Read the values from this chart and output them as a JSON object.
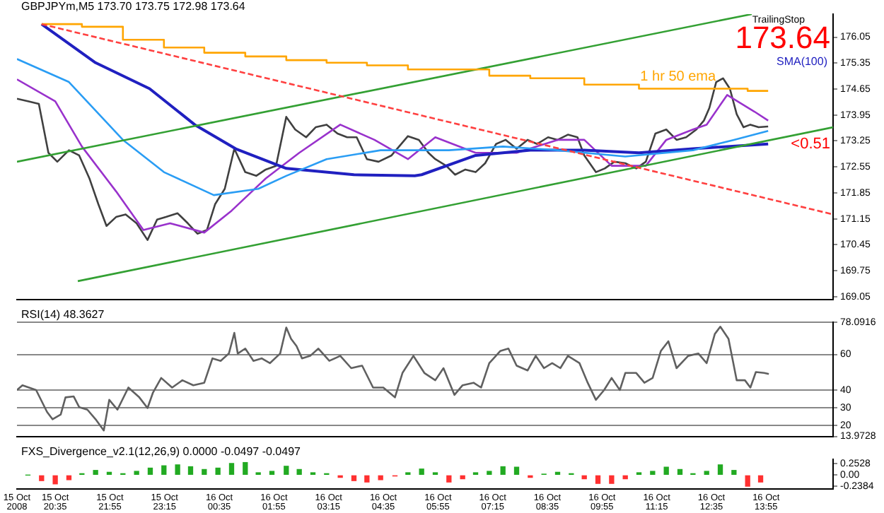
{
  "chart_data": [
    {
      "type": "line",
      "title": "GBPJPYm,M5 173.70 173.75 172.98 173.64",
      "xlim": [
        "2008-10-15T19:39",
        "2008-10-16T15:33"
      ],
      "ylim": [
        168.98,
        176.67
      ],
      "yticks": [
        176.05,
        175.35,
        174.65,
        173.95,
        173.25,
        172.55,
        171.85,
        171.15,
        170.45,
        169.75,
        169.05
      ],
      "tick_labels": "y",
      "legend": "top right",
      "marker": "none",
      "annotations": [
        "TrailingStop",
        "173.64",
        "1 hr 50 ema",
        "<0.51"
      ],
      "series": [
        {
          "color": "#ff4040",
          "line_style": "dashed",
          "x": [
            "2008-10-15T20:15",
            "2008-10-16T15:33"
          ],
          "values": [
            176.4,
            171.27
          ]
        },
        {
          "type": "step",
          "color": "#ffa500",
          "x": [
            "2008-10-15T20:15",
            "2008-10-15T21:14",
            "2008-10-15T22:14",
            "2008-10-15T23:14",
            "2008-10-16T00:13",
            "2008-10-16T01:13",
            "2008-10-16T02:13",
            "2008-10-16T03:12",
            "2008-10-16T04:11",
            "2008-10-16T05:11",
            "2008-10-16T06:11",
            "2008-10-16T07:10",
            "2008-10-16T08:10",
            "2008-10-16T09:29",
            "2008-10-16T10:49",
            "2008-10-16T12:08",
            "2008-10-16T13:28",
            "2008-10-16T13:58"
          ],
          "values": [
            176.4,
            176.33,
            175.98,
            175.77,
            175.63,
            175.53,
            175.43,
            175.36,
            175.29,
            175.18,
            175.18,
            175.01,
            174.94,
            174.77,
            174.66,
            174.66,
            174.6,
            174.6
          ]
        },
        {
          "color": "#33a033",
          "x": [
            "2008-10-15T19:39",
            "2008-10-16T13:34"
          ],
          "values": [
            172.69,
            176.67
          ]
        },
        {
          "color": "#33a033",
          "x": [
            "2008-10-15T21:08",
            "2008-10-16T15:33"
          ],
          "values": [
            169.47,
            173.62
          ]
        },
        {
          "color": "#2a9df4",
          "x": [
            "2008-10-15T19:39",
            "2008-10-15T20:55",
            "2008-10-15T22:14",
            "2008-10-15T23:14",
            "2008-10-16T00:27",
            "2008-10-16T01:32",
            "2008-10-16T02:13",
            "2008-10-16T03:12",
            "2008-10-16T04:31",
            "2008-10-16T06:11",
            "2008-10-16T07:30",
            "2008-10-16T08:50",
            "2008-10-16T10:29",
            "2008-10-16T12:08",
            "2008-10-16T13:08",
            "2008-10-16T13:58"
          ],
          "values": [
            175.46,
            174.84,
            173.28,
            172.41,
            171.79,
            171.96,
            172.31,
            172.76,
            173.0,
            173.0,
            173.1,
            173.0,
            172.83,
            173.0,
            173.28,
            173.52
          ]
        },
        {
          "name": "SMA(100)",
          "color": "#2020c0",
          "x": [
            "2008-10-15T20:15",
            "2008-10-15T21:34",
            "2008-10-15T22:53",
            "2008-10-15T23:59",
            "2008-10-16T00:59",
            "2008-10-16T02:13",
            "2008-10-16T03:52",
            "2008-10-16T05:21",
            "2008-10-16T05:31",
            "2008-10-16T06:50",
            "2008-10-16T08:10",
            "2008-10-16T09:29",
            "2008-10-16T10:49",
            "2008-10-16T12:08",
            "2008-10-16T13:58"
          ],
          "values": [
            176.4,
            175.36,
            174.66,
            173.69,
            173.04,
            172.51,
            172.34,
            172.31,
            172.34,
            172.86,
            173.0,
            173.0,
            172.93,
            173.04,
            173.17
          ]
        },
        {
          "color": "#9932cc",
          "x": [
            "2008-10-15T19:39",
            "2008-10-15T20:35",
            "2008-10-15T21:14",
            "2008-10-15T22:04",
            "2008-10-15T22:44",
            "2008-10-15T23:23",
            "2008-10-16T00:13",
            "2008-10-16T00:53",
            "2008-10-16T01:43",
            "2008-10-16T02:32",
            "2008-10-16T03:32",
            "2008-10-16T04:22",
            "2008-10-16T05:11",
            "2008-10-16T05:51",
            "2008-10-16T06:50",
            "2008-10-16T07:50",
            "2008-10-16T08:50",
            "2008-10-16T09:29",
            "2008-10-16T10:09",
            "2008-10-16T10:59",
            "2008-10-16T11:29",
            "2008-10-16T12:08",
            "2008-10-16T12:28",
            "2008-10-16T12:58",
            "2008-10-16T13:38",
            "2008-10-16T13:58"
          ],
          "values": [
            174.91,
            174.32,
            173.1,
            171.89,
            170.85,
            171.03,
            170.78,
            171.37,
            172.24,
            172.93,
            173.69,
            173.28,
            172.76,
            173.35,
            172.93,
            172.93,
            173.28,
            173.28,
            172.58,
            172.58,
            173.28,
            173.56,
            173.69,
            174.49,
            174.04,
            173.8
          ]
        },
        {
          "color": "#404040",
          "x": [
            "2008-10-15T19:39",
            "2008-10-15T19:55",
            "2008-10-15T20:11",
            "2008-10-15T20:25",
            "2008-10-15T20:38",
            "2008-10-15T20:55",
            "2008-10-15T21:10",
            "2008-10-15T21:25",
            "2008-10-15T21:38",
            "2008-10-15T21:50",
            "2008-10-15T22:04",
            "2008-10-15T22:18",
            "2008-10-15T22:34",
            "2008-10-15T22:50",
            "2008-10-15T23:04",
            "2008-10-15T23:17",
            "2008-10-15T23:34",
            "2008-10-15T23:49",
            "2008-10-16T00:03",
            "2008-10-16T00:17",
            "2008-10-16T00:29",
            "2008-10-16T00:43",
            "2008-10-16T00:57",
            "2008-10-16T01:13",
            "2008-10-16T01:29",
            "2008-10-16T01:43",
            "2008-10-16T01:58",
            "2008-10-16T02:13",
            "2008-10-16T02:26",
            "2008-10-16T02:42",
            "2008-10-16T02:56",
            "2008-10-16T03:12",
            "2008-10-16T03:28",
            "2008-10-16T03:42",
            "2008-10-16T03:56",
            "2008-10-16T04:11",
            "2008-10-16T04:28",
            "2008-10-16T04:47",
            "2008-10-16T05:11",
            "2008-10-16T05:27",
            "2008-10-16T05:41",
            "2008-10-16T05:51",
            "2008-10-16T06:07",
            "2008-10-16T06:20",
            "2008-10-16T06:35",
            "2008-10-16T06:50",
            "2008-10-16T07:04",
            "2008-10-16T07:20",
            "2008-10-16T07:34",
            "2008-10-16T07:50",
            "2008-10-16T08:06",
            "2008-10-16T08:20",
            "2008-10-16T08:36",
            "2008-10-16T08:50",
            "2008-10-16T09:05",
            "2008-10-16T09:19",
            "2008-10-16T09:29",
            "2008-10-16T09:46",
            "2008-10-16T09:59",
            "2008-10-16T10:13",
            "2008-10-16T10:29",
            "2008-10-16T10:45",
            "2008-10-16T10:59",
            "2008-10-16T11:13",
            "2008-10-16T11:29",
            "2008-10-16T11:44",
            "2008-10-16T11:58",
            "2008-10-16T12:13",
            "2008-10-16T12:24",
            "2008-10-16T12:32",
            "2008-10-16T12:42",
            "2008-10-16T12:52",
            "2008-10-16T13:02",
            "2008-10-16T13:12",
            "2008-10-16T13:22",
            "2008-10-16T13:32",
            "2008-10-16T13:44",
            "2008-10-16T13:58"
          ],
          "values": [
            174.39,
            174.32,
            174.25,
            172.93,
            172.69,
            173.0,
            172.86,
            172.24,
            171.55,
            170.96,
            171.2,
            171.27,
            171.03,
            170.58,
            171.13,
            171.2,
            171.3,
            171.03,
            170.75,
            170.85,
            171.55,
            171.96,
            173.04,
            172.41,
            172.31,
            172.48,
            172.58,
            173.9,
            173.56,
            173.35,
            173.62,
            173.69,
            173.45,
            173.35,
            173.35,
            172.76,
            172.69,
            172.86,
            173.38,
            173.28,
            172.93,
            172.76,
            172.58,
            172.34,
            172.48,
            172.41,
            172.65,
            173.17,
            173.28,
            173.04,
            173.28,
            173.17,
            173.35,
            173.28,
            173.42,
            173.35,
            172.86,
            172.41,
            172.51,
            172.69,
            172.65,
            172.51,
            172.69,
            173.45,
            173.56,
            173.28,
            173.35,
            173.56,
            173.8,
            174.14,
            174.84,
            174.94,
            174.66,
            173.97,
            173.62,
            173.69,
            173.62,
            173.64
          ]
        }
      ]
    },
    {
      "type": "line",
      "title": "RSI(14) 48.3627",
      "xlim": [
        "2008-10-15T19:39",
        "2008-10-16T15:33"
      ],
      "ylim": [
        13.9728,
        78.0916
      ],
      "yticks": [
        78.0916,
        60,
        40,
        30,
        20,
        13.9728
      ],
      "grid": "y",
      "tick_labels": "y",
      "marker": "none",
      "series": [
        {
          "color": "#606060",
          "x": [
            "2008-10-15T19:39",
            "2008-10-15T19:47",
            "2008-10-15T20:07",
            "2008-10-15T20:23",
            "2008-10-15T20:31",
            "2008-10-15T20:43",
            "2008-10-15T20:50",
            "2008-10-15T21:02",
            "2008-10-15T21:10",
            "2008-10-15T21:22",
            "2008-10-15T21:34",
            "2008-10-15T21:46",
            "2008-10-15T21:54",
            "2008-10-15T22:06",
            "2008-10-15T22:22",
            "2008-10-15T22:38",
            "2008-10-15T22:50",
            "2008-10-15T22:58",
            "2008-10-15T23:10",
            "2008-10-15T23:26",
            "2008-10-15T23:41",
            "2008-10-15T23:57",
            "2008-10-16T00:13",
            "2008-10-16T00:25",
            "2008-10-16T00:37",
            "2008-10-16T00:49",
            "2008-10-16T00:57",
            "2008-10-16T01:02",
            "2008-10-16T01:13",
            "2008-10-16T01:25",
            "2008-10-16T01:37",
            "2008-10-16T01:49",
            "2008-10-16T02:04",
            "2008-10-16T02:13",
            "2008-10-16T02:20",
            "2008-10-16T02:28",
            "2008-10-16T02:36",
            "2008-10-16T02:48",
            "2008-10-16T03:00",
            "2008-10-16T03:16",
            "2008-10-16T03:32",
            "2008-10-16T03:48",
            "2008-10-16T04:04",
            "2008-10-16T04:20",
            "2008-10-16T04:35",
            "2008-10-16T04:52",
            "2008-10-16T05:03",
            "2008-10-16T05:19",
            "2008-10-16T05:35",
            "2008-10-16T05:51",
            "2008-10-16T06:03",
            "2008-10-16T06:19",
            "2008-10-16T06:31",
            "2008-10-16T06:47",
            "2008-10-16T06:58",
            "2008-10-16T07:10",
            "2008-10-16T07:26",
            "2008-10-16T07:38",
            "2008-10-16T07:50",
            "2008-10-16T08:06",
            "2008-10-16T08:18",
            "2008-10-16T08:30",
            "2008-10-16T08:42",
            "2008-10-16T08:54",
            "2008-10-16T09:05",
            "2008-10-16T09:22",
            "2008-10-16T09:34",
            "2008-10-16T09:46",
            "2008-10-16T09:58",
            "2008-10-16T10:09",
            "2008-10-16T10:21",
            "2008-10-16T10:29",
            "2008-10-16T10:45",
            "2008-10-16T10:57",
            "2008-10-16T11:09",
            "2008-10-16T11:21",
            "2008-10-16T11:32",
            "2008-10-16T11:44",
            "2008-10-16T12:01",
            "2008-10-16T12:16",
            "2008-10-16T12:28",
            "2008-10-16T12:40",
            "2008-10-16T12:48",
            "2008-10-16T13:00",
            "2008-10-16T13:12",
            "2008-10-16T13:24",
            "2008-10-16T13:32",
            "2008-10-16T13:40",
            "2008-10-16T13:52",
            "2008-10-16T13:59"
          ],
          "values": [
            40,
            42.7,
            40,
            27.7,
            23.6,
            26.3,
            35.9,
            36.4,
            30.4,
            29,
            23.6,
            17.3,
            34.5,
            29,
            41.4,
            35.9,
            29.9,
            38.6,
            46.8,
            41.4,
            45.5,
            42.7,
            44.1,
            57.8,
            56.4,
            60.5,
            72.1,
            60.5,
            63.3,
            56.4,
            57.8,
            55.1,
            60.5,
            75.1,
            68.8,
            64.7,
            57.8,
            59.2,
            63.3,
            56.4,
            59.2,
            52.3,
            53.7,
            41.4,
            41.4,
            35.9,
            49.6,
            59.2,
            49.6,
            45.5,
            52.3,
            37.3,
            42.7,
            44.1,
            41.4,
            55.1,
            61.9,
            63.3,
            53.7,
            51,
            59.2,
            52.3,
            55.1,
            52.3,
            59.2,
            55.1,
            44.1,
            34.5,
            40,
            46.8,
            40,
            49.6,
            49.6,
            44.1,
            46.8,
            61.9,
            67.4,
            52.3,
            59.2,
            60.5,
            55.1,
            71.5,
            75.6,
            68.8,
            45.5,
            45.5,
            41.4,
            50.1,
            49.6,
            49
          ]
        }
      ]
    },
    {
      "type": "bar",
      "title": "FXS_Divergence_v2.1(12,26,9) 0.0000 -0.0497 -0.0497",
      "xlim": [
        "2008-10-15T19:39",
        "2008-10-16T15:33"
      ],
      "xticks": [
        {
          "value": "2008-10-15T19:39",
          "label": "15 Oct 2008"
        },
        {
          "value": "2008-10-15T20:35",
          "label": "15 Oct 20:35"
        },
        {
          "value": "2008-10-15T21:55",
          "label": "15 Oct 21:55"
        },
        {
          "value": "2008-10-15T23:15",
          "label": "15 Oct 23:15"
        },
        {
          "value": "2008-10-16T00:35",
          "label": "16 Oct 00:35"
        },
        {
          "value": "2008-10-16T01:55",
          "label": "16 Oct 01:55"
        },
        {
          "value": "2008-10-16T03:15",
          "label": "16 Oct 03:15"
        },
        {
          "value": "2008-10-16T04:35",
          "label": "16 Oct 04:35"
        },
        {
          "value": "2008-10-16T05:55",
          "label": "16 Oct 05:55"
        },
        {
          "value": "2008-10-16T07:15",
          "label": "16 Oct 07:15"
        },
        {
          "value": "2008-10-16T08:35",
          "label": "16 Oct 08:35"
        },
        {
          "value": "2008-10-16T09:55",
          "label": "16 Oct 09:55"
        },
        {
          "value": "2008-10-16T11:15",
          "label": "16 Oct 11:15"
        },
        {
          "value": "2008-10-16T12:35",
          "label": "16 Oct 12:35"
        },
        {
          "value": "2008-10-16T13:55",
          "label": "16 Oct 13:55"
        }
      ],
      "ylim": [
        -0.3,
        0.34
      ],
      "yticks": [
        0.2528,
        {
          "value": 0,
          "label": "0.00"
        },
        -0.2384
      ],
      "x": [
        "2008-10-15T19:55",
        "2008-10-15T20:15",
        "2008-10-15T20:35",
        "2008-10-15T20:55",
        "2008-10-15T21:14",
        "2008-10-15T21:34",
        "2008-10-15T21:54",
        "2008-10-15T22:14",
        "2008-10-15T22:34",
        "2008-10-15T22:54",
        "2008-10-15T23:14",
        "2008-10-15T23:34",
        "2008-10-15T23:53",
        "2008-10-16T00:13",
        "2008-10-16T00:33",
        "2008-10-16T00:53",
        "2008-10-16T01:13",
        "2008-10-16T01:32",
        "2008-10-16T01:52",
        "2008-10-16T02:13",
        "2008-10-16T02:32",
        "2008-10-16T02:52",
        "2008-10-16T03:12",
        "2008-10-16T03:32",
        "2008-10-16T03:52",
        "2008-10-16T04:11",
        "2008-10-16T04:31",
        "2008-10-16T04:52",
        "2008-10-16T05:11",
        "2008-10-16T05:31",
        "2008-10-16T05:51",
        "2008-10-16T06:11",
        "2008-10-16T06:31",
        "2008-10-16T06:50",
        "2008-10-16T07:10",
        "2008-10-16T07:30",
        "2008-10-16T07:50",
        "2008-10-16T08:10",
        "2008-10-16T08:30",
        "2008-10-16T08:50",
        "2008-10-16T09:10",
        "2008-10-16T09:29",
        "2008-10-16T09:49",
        "2008-10-16T10:09",
        "2008-10-16T10:29",
        "2008-10-16T10:49",
        "2008-10-16T11:09",
        "2008-10-16T11:29",
        "2008-10-16T11:49",
        "2008-10-16T12:08",
        "2008-10-16T12:28",
        "2008-10-16T12:48",
        "2008-10-16T13:08",
        "2008-10-16T13:28",
        "2008-10-16T13:47"
      ],
      "values": [
        0.0,
        -0.12,
        -0.19,
        -0.1,
        0.03,
        0.1,
        0.06,
        0.03,
        0.08,
        0.15,
        0.2,
        0.22,
        0.18,
        0.12,
        0.15,
        0.25,
        0.27,
        0.05,
        0.08,
        0.19,
        0.12,
        0.05,
        0.03,
        -0.05,
        -0.12,
        -0.15,
        -0.1,
        -0.02,
        0.05,
        0.13,
        0.05,
        -0.15,
        -0.08,
        0.05,
        0.08,
        0.18,
        0.17,
        -0.05,
        0.02,
        0.06,
        0.03,
        -0.08,
        -0.18,
        -0.18,
        -0.08,
        0.05,
        0.08,
        0.17,
        0.12,
        0.03,
        0.08,
        0.22,
        0.1,
        -0.24,
        -0.15
      ],
      "colors": [
        "#22aa22",
        "#ff3030",
        "#ff3030",
        "#ff3030",
        "#22aa22",
        "#22aa22",
        "#22aa22",
        "#22aa22",
        "#22aa22",
        "#22aa22",
        "#22aa22",
        "#22aa22",
        "#22aa22",
        "#22aa22",
        "#22aa22",
        "#22aa22",
        "#22aa22",
        "#22aa22",
        "#22aa22",
        "#22aa22",
        "#22aa22",
        "#22aa22",
        "#22aa22",
        "#ff3030",
        "#ff3030",
        "#ff3030",
        "#ff3030",
        "#ff3030",
        "#22aa22",
        "#22aa22",
        "#22aa22",
        "#ff3030",
        "#ff3030",
        "#22aa22",
        "#22aa22",
        "#22aa22",
        "#22aa22",
        "#ff3030",
        "#22aa22",
        "#22aa22",
        "#22aa22",
        "#ff3030",
        "#ff3030",
        "#ff3030",
        "#ff3030",
        "#22aa22",
        "#22aa22",
        "#22aa22",
        "#22aa22",
        "#22aa22",
        "#22aa22",
        "#22aa22",
        "#22aa22",
        "#ff3030",
        "#ff3030"
      ]
    }
  ]
}
